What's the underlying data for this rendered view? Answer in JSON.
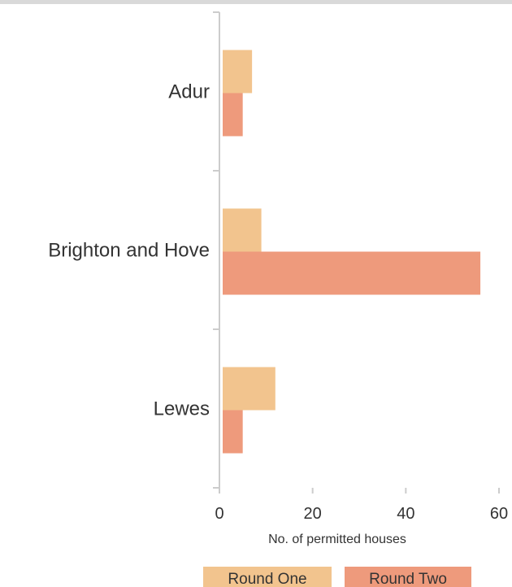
{
  "colors": {
    "round_one": "#F2C48E",
    "round_two": "#EE9A7C",
    "axis": "#cccccc",
    "text": "#333333"
  },
  "chart_data": {
    "type": "bar",
    "orientation": "horizontal",
    "categories": [
      "Adur",
      "Brighton and Hove",
      "Lewes"
    ],
    "series": [
      {
        "name": "Round One",
        "values": [
          7,
          9,
          12
        ]
      },
      {
        "name": "Round Two",
        "values": [
          5,
          56,
          5
        ]
      }
    ],
    "xlabel": "No. of permitted houses",
    "xlim": [
      0,
      60
    ],
    "xticks": [
      "0",
      "20",
      "40",
      "60"
    ],
    "legend_position": "bottom",
    "grid": false
  }
}
